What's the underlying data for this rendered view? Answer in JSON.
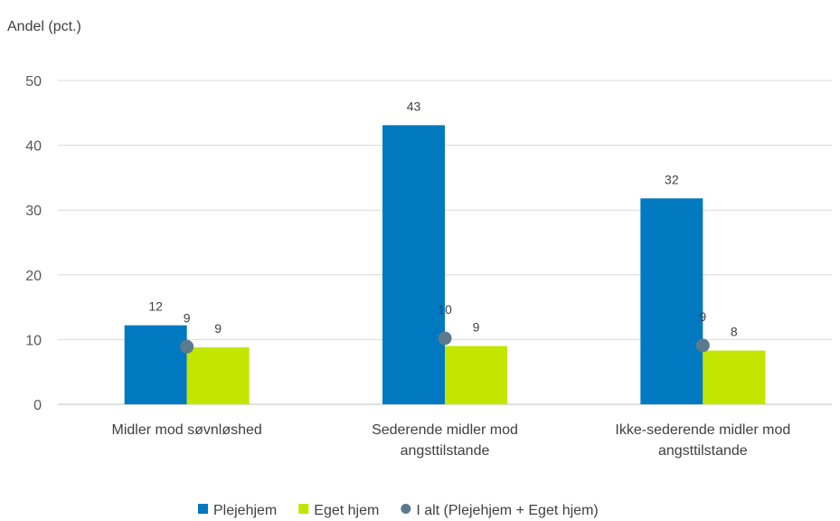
{
  "chart_data": {
    "type": "bar",
    "ylabel": "Andel (pct.)",
    "ylim": [
      0,
      50
    ],
    "yticks": [
      0,
      10,
      20,
      30,
      40,
      50
    ],
    "grid": true,
    "legend_position": "bottom",
    "categories": [
      [
        "Midler mod søvnløshed"
      ],
      [
        "Sederende midler mod",
        "angsttilstande"
      ],
      [
        "Ikke-sederende midler mod",
        "angsttilstande"
      ]
    ],
    "series": [
      {
        "name": "Plejehjem",
        "kind": "bar",
        "color": "#0079C1",
        "values": [
          12.2,
          43.1,
          31.8
        ],
        "labels": [
          "12",
          "43",
          "32"
        ]
      },
      {
        "name": "Eget hjem",
        "kind": "bar",
        "color": "#C3E600",
        "values": [
          8.8,
          9.0,
          8.3
        ],
        "labels": [
          "9",
          "9",
          "8"
        ]
      },
      {
        "name": "I alt (Plejehjem + Eget hjem)",
        "kind": "marker",
        "color": "#5B7A90",
        "values": [
          8.9,
          10.2,
          9.1
        ],
        "labels": [
          "9",
          "10",
          "9"
        ]
      }
    ]
  }
}
